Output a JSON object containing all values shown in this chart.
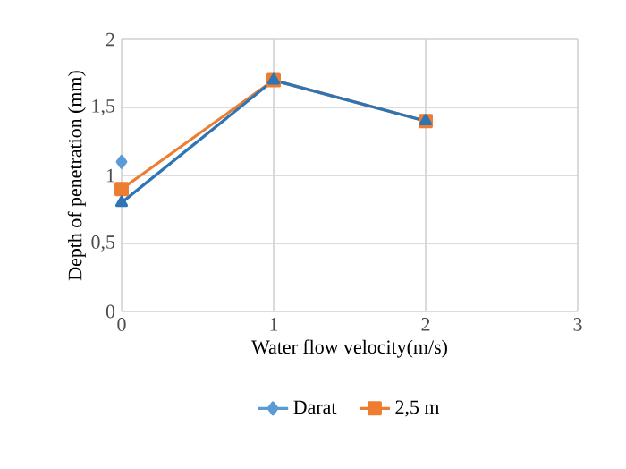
{
  "chart_data": {
    "type": "line",
    "xlabel": "Water flow velocity(m/s)",
    "ylabel": "Depth of penetration (mm)",
    "x": [
      0,
      1,
      2
    ],
    "series": [
      {
        "name": "Darat",
        "color": "#5b9bd5",
        "marker": "diamond",
        "values": [
          1.1,
          null,
          null
        ]
      },
      {
        "name": "2,5 m",
        "color": "#ed7d31",
        "marker": "square",
        "values": [
          0.9,
          1.7,
          1.4
        ]
      },
      {
        "color": "#2e75b6",
        "marker": "triangle",
        "values": [
          0.8,
          1.7,
          1.4
        ]
      }
    ],
    "xlim": [
      0,
      3
    ],
    "xticks": [
      0,
      1,
      2,
      3
    ],
    "ylim": [
      0,
      2
    ],
    "yticks": [
      0,
      {
        "value": 0.5,
        "label": "0,5"
      },
      1,
      {
        "value": 1.5,
        "label": "1,5"
      },
      2
    ],
    "grid": true,
    "legend": "bottom",
    "line_style": "solid"
  }
}
